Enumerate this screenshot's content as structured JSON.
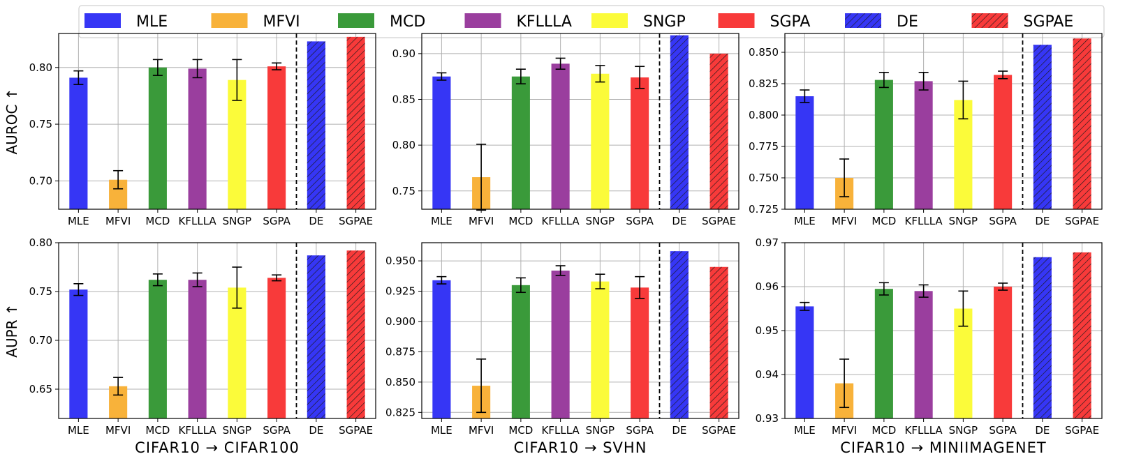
{
  "chart_data": {
    "type": "bar",
    "methods": [
      "MLE",
      "MFVI",
      "MCD",
      "KFLLLA",
      "SNGP",
      "SGPA",
      "DE",
      "SGPAE"
    ],
    "colors": {
      "MLE": "#3636f5",
      "MFVI": "#f8b23a",
      "MCD": "#3a9a3a",
      "KFLLLA": "#9a3e9e",
      "SNGP": "#fbfb3a",
      "SGPA": "#f83a3a",
      "DE": "#3636f5",
      "SGPAE": "#f83a3a"
    },
    "hatched": [
      "DE",
      "SGPAE"
    ],
    "legend": {
      "placement": "top",
      "entries": [
        "MLE",
        "MFVI",
        "MCD",
        "KFLLLA",
        "SNGP",
        "SGPA",
        "DE",
        "SGPAE"
      ]
    },
    "panels": [
      {
        "ylabel": "AUROC ↑",
        "xlabel": "",
        "ylim": [
          0.675,
          0.83
        ],
        "yticks": [
          0.7,
          0.75,
          0.8
        ],
        "ytick_labels": [
          "0.70",
          "0.75",
          "0.80"
        ],
        "values": [
          0.791,
          0.701,
          0.8,
          0.799,
          0.789,
          0.801,
          0.823,
          0.827
        ],
        "errors": [
          0.006,
          0.008,
          0.007,
          0.008,
          0.018,
          0.003,
          null,
          null
        ]
      },
      {
        "ylabel": "",
        "xlabel": "",
        "ylim": [
          0.73,
          0.922
        ],
        "yticks": [
          0.75,
          0.8,
          0.85,
          0.9
        ],
        "ytick_labels": [
          "0.75",
          "0.80",
          "0.85",
          "0.90"
        ],
        "values": [
          0.875,
          0.765,
          0.875,
          0.889,
          0.878,
          0.874,
          0.92,
          0.9
        ],
        "errors": [
          0.004,
          0.036,
          0.008,
          0.006,
          0.009,
          0.012,
          null,
          null
        ]
      },
      {
        "ylabel": "",
        "xlabel": "",
        "ylim": [
          0.725,
          0.865
        ],
        "yticks": [
          0.725,
          0.75,
          0.775,
          0.8,
          0.825,
          0.85
        ],
        "ytick_labels": [
          "0.725",
          "0.750",
          "0.775",
          "0.800",
          "0.825",
          "0.850"
        ],
        "values": [
          0.815,
          0.75,
          0.828,
          0.827,
          0.812,
          0.832,
          0.856,
          0.861
        ],
        "errors": [
          0.005,
          0.015,
          0.006,
          0.007,
          0.015,
          0.003,
          null,
          null
        ]
      },
      {
        "ylabel": "AUPR ↑",
        "xlabel": "CIFAR10 → CIFAR100",
        "ylim": [
          0.62,
          0.8
        ],
        "yticks": [
          0.65,
          0.7,
          0.75,
          0.8
        ],
        "ytick_labels": [
          "0.65",
          "0.70",
          "0.75",
          "0.80"
        ],
        "values": [
          0.752,
          0.653,
          0.762,
          0.762,
          0.754,
          0.764,
          0.787,
          0.792
        ],
        "errors": [
          0.006,
          0.009,
          0.006,
          0.007,
          0.021,
          0.003,
          null,
          null
        ]
      },
      {
        "ylabel": "",
        "xlabel": "CIFAR10 → SVHN",
        "ylim": [
          0.82,
          0.965
        ],
        "yticks": [
          0.825,
          0.85,
          0.875,
          0.9,
          0.925,
          0.95
        ],
        "ytick_labels": [
          "0.825",
          "0.850",
          "0.875",
          "0.900",
          "0.925",
          "0.950"
        ],
        "values": [
          0.934,
          0.847,
          0.93,
          0.942,
          0.933,
          0.928,
          0.958,
          0.945
        ],
        "errors": [
          0.003,
          0.022,
          0.006,
          0.004,
          0.006,
          0.009,
          null,
          null
        ]
      },
      {
        "ylabel": "",
        "xlabel": "CIFAR10 → MINIIMAGENET",
        "ylim": [
          0.93,
          0.97
        ],
        "yticks": [
          0.93,
          0.94,
          0.95,
          0.96,
          0.97
        ],
        "ytick_labels": [
          "0.93",
          "0.94",
          "0.95",
          "0.96",
          "0.97"
        ],
        "values": [
          0.9555,
          0.938,
          0.9595,
          0.959,
          0.955,
          0.96,
          0.9667,
          0.9678
        ],
        "errors": [
          0.0009,
          0.0055,
          0.0014,
          0.0014,
          0.004,
          0.0008,
          null,
          null
        ]
      }
    ]
  }
}
